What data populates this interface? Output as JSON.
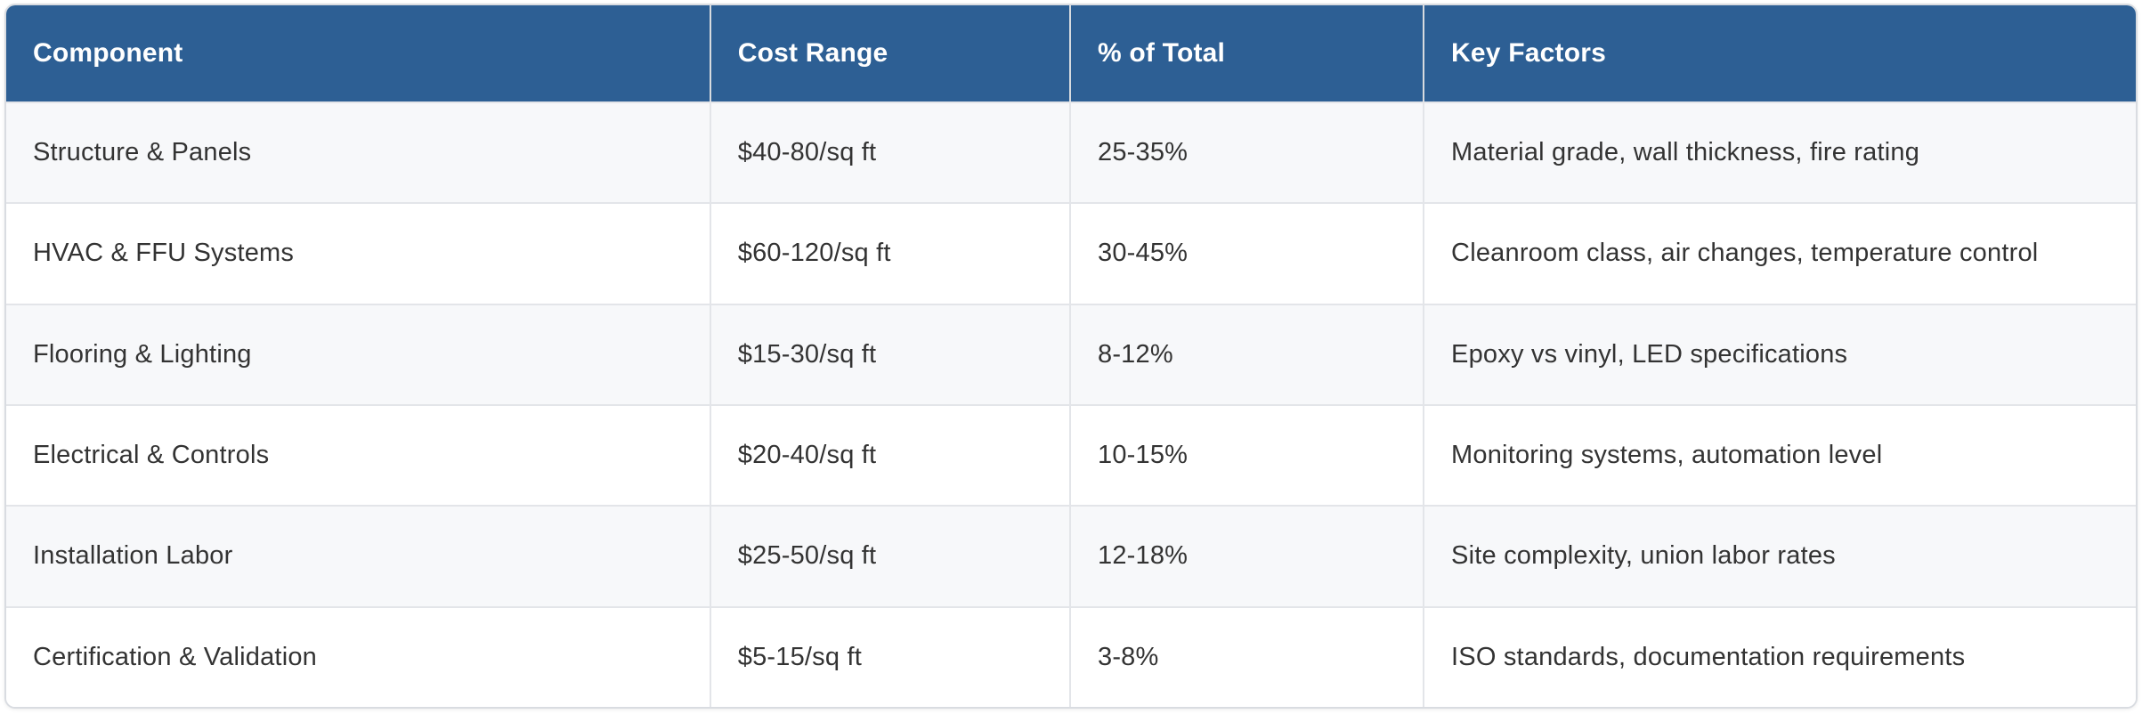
{
  "table": {
    "columns": [
      {
        "label": "Component"
      },
      {
        "label": "Cost Range"
      },
      {
        "label": "% of Total"
      },
      {
        "label": "Key Factors"
      }
    ],
    "rows": [
      {
        "component": "Structure & Panels",
        "cost_range": "$40-80/sq ft",
        "pct_of_total": "25-35%",
        "key_factors": "Material grade, wall thickness, fire rating"
      },
      {
        "component": "HVAC & FFU Systems",
        "cost_range": "$60-120/sq ft",
        "pct_of_total": "30-45%",
        "key_factors": "Cleanroom class, air changes, temperature control"
      },
      {
        "component": "Flooring & Lighting",
        "cost_range": "$15-30/sq ft",
        "pct_of_total": "8-12%",
        "key_factors": "Epoxy vs vinyl, LED specifications"
      },
      {
        "component": "Electrical & Controls",
        "cost_range": "$20-40/sq ft",
        "pct_of_total": "10-15%",
        "key_factors": "Monitoring systems, automation level"
      },
      {
        "component": "Installation Labor",
        "cost_range": "$25-50/sq ft",
        "pct_of_total": "12-18%",
        "key_factors": "Site complexity, union labor rates"
      },
      {
        "component": "Certification & Validation",
        "cost_range": "$5-15/sq ft",
        "pct_of_total": "3-8%",
        "key_factors": "ISO standards, documentation requirements"
      }
    ]
  },
  "colors": {
    "header_bg": "#2d5f94",
    "header_text": "#ffffff",
    "row_bg_alt": "#f7f8fa",
    "row_bg": "#ffffff",
    "body_text": "#333333",
    "divider": "#e3e5e9",
    "outer_border": "#d9dce1"
  }
}
